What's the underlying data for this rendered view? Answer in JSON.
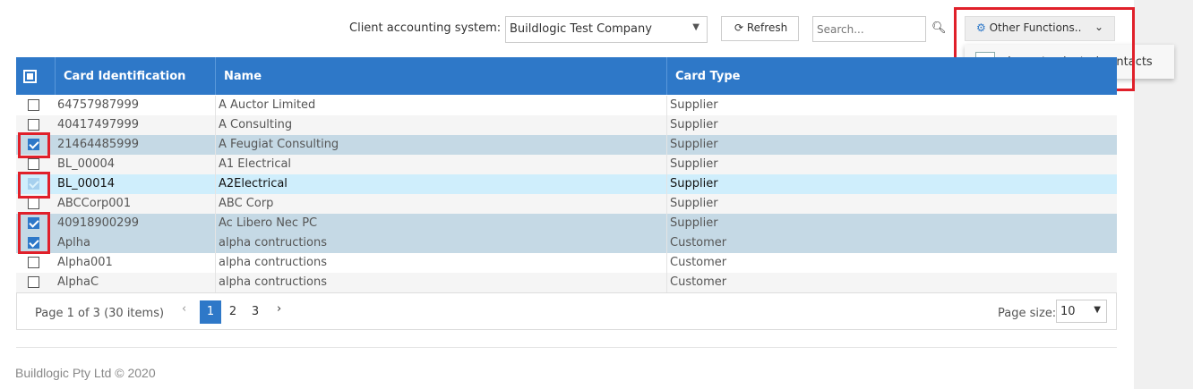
{
  "toolbar": {
    "label": "Client accounting system:",
    "system": "Buildlogic Test Company",
    "refresh": "Refresh",
    "search_placeholder": "Search...",
    "other_functions": "Other Functions..",
    "menu": [
      "Import selected contacts"
    ]
  },
  "table": {
    "columns": [
      "Card Identification",
      "Name",
      "Card Type"
    ],
    "rows": [
      {
        "cells": [
          "64757987999",
          "A Auctor Limited",
          "Supplier"
        ],
        "checked": false
      },
      {
        "cells": [
          "40417497999",
          "A Consulting",
          "Supplier"
        ],
        "checked": false
      },
      {
        "cells": [
          "21464485999",
          "A Feugiat Consulting",
          "Supplier"
        ],
        "checked": true
      },
      {
        "cells": [
          "BL_00004",
          "A1 Electrical",
          "Supplier"
        ],
        "checked": false
      },
      {
        "cells": [
          "BL_00014",
          "A2Electrical",
          "Supplier"
        ],
        "checked": true,
        "hover": true
      },
      {
        "cells": [
          "ABCCorp001",
          "ABC Corp",
          "Supplier"
        ],
        "checked": false
      },
      {
        "cells": [
          "40918900299",
          "Ac Libero Nec PC",
          "Supplier"
        ],
        "checked": true
      },
      {
        "cells": [
          "Aplha",
          "alpha contructions",
          "Customer"
        ],
        "checked": true
      },
      {
        "cells": [
          "Alpha001",
          "alpha contructions",
          "Customer"
        ],
        "checked": false
      },
      {
        "cells": [
          "AlphaC",
          "alpha contructions",
          "Customer"
        ],
        "checked": false
      }
    ]
  },
  "pager": {
    "info": "Page 1 of 3 (30 items)",
    "pages": [
      "1",
      "2",
      "3"
    ],
    "current": 0,
    "page_size_label": "Page size:",
    "page_size": "10"
  },
  "footer": "Buildlogic Pty Ltd © 2020"
}
